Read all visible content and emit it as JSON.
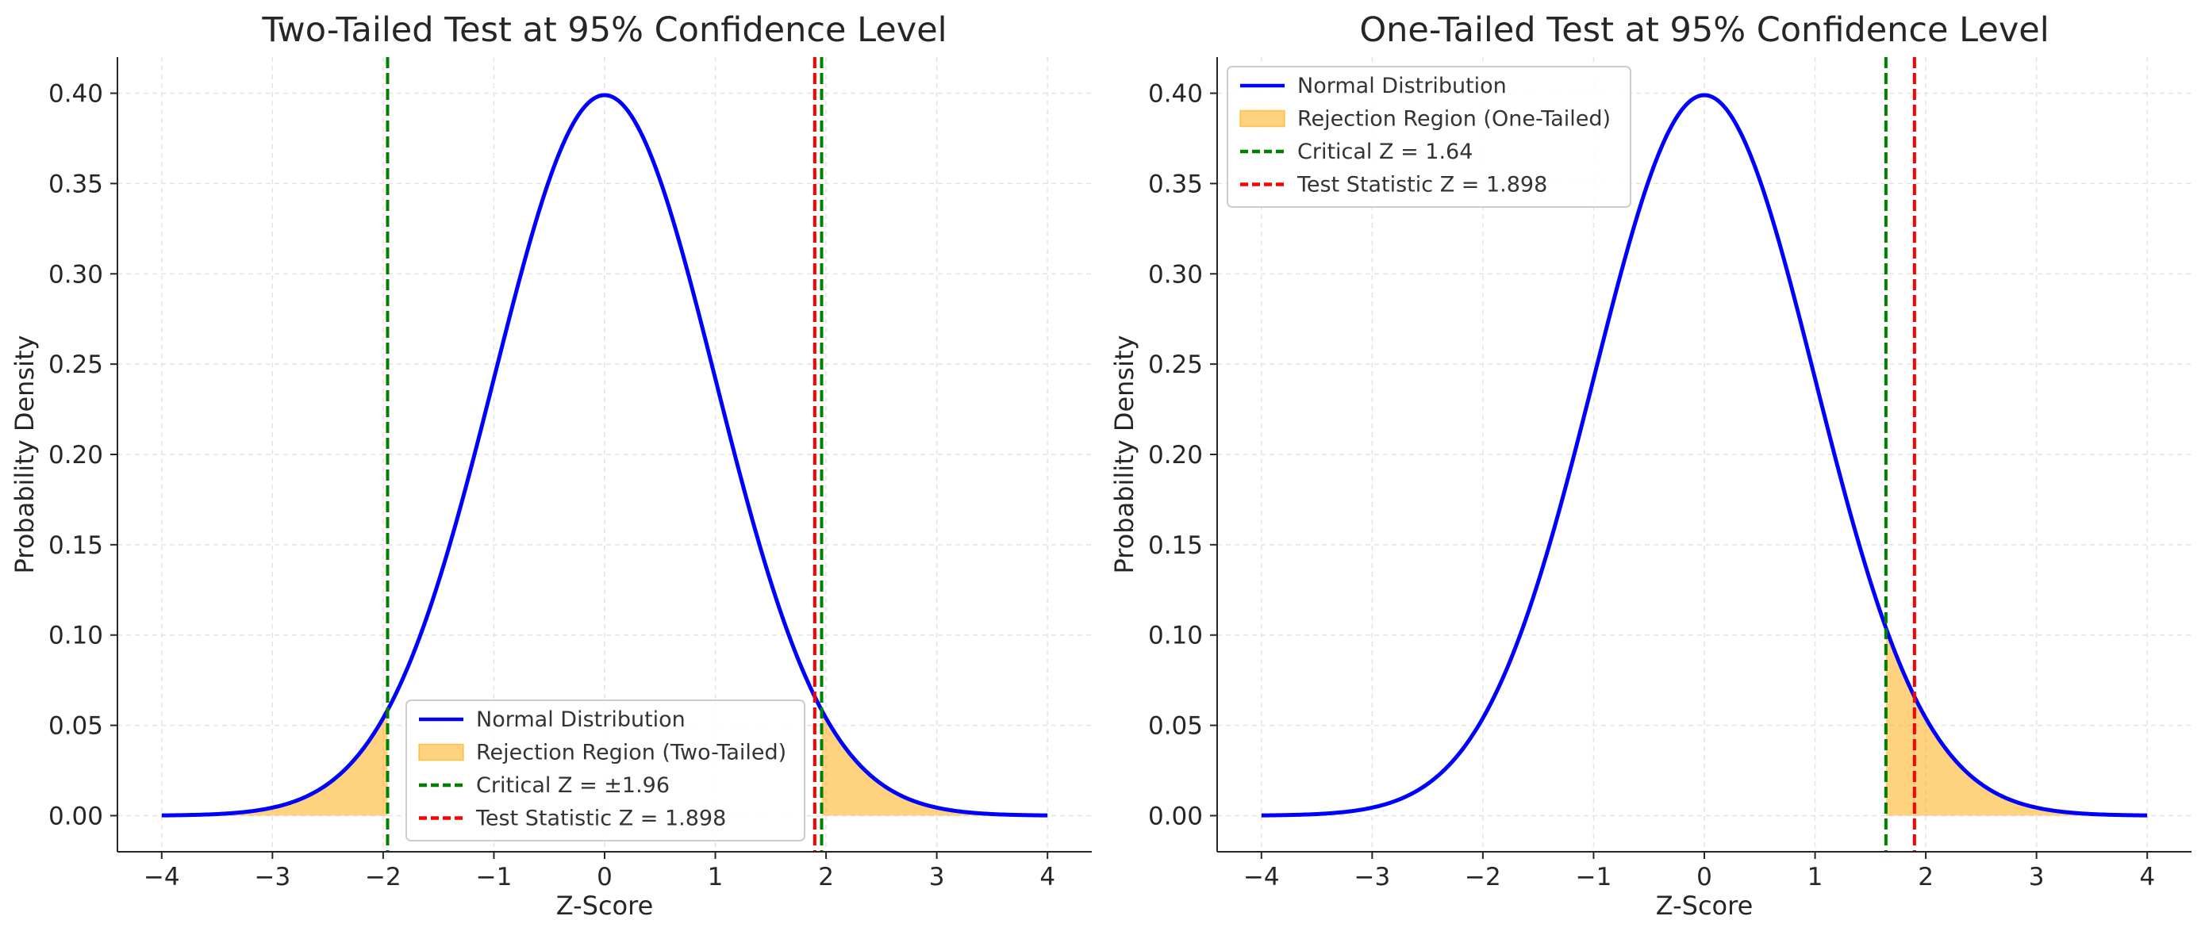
{
  "chart_data": [
    {
      "type": "line",
      "title": "Two-Tailed Test at 95% Confidence Level",
      "xlabel": "Z-Score",
      "ylabel": "Probability Density",
      "xlim": [
        -4.4,
        4.4
      ],
      "ylim": [
        -0.02,
        0.42
      ],
      "xticks": [
        -4,
        -3,
        -2,
        -1,
        0,
        1,
        2,
        3,
        4
      ],
      "xtick_labels": [
        "−4",
        "−3",
        "−2",
        "−1",
        "0",
        "1",
        "2",
        "3",
        "4"
      ],
      "yticks": [
        0,
        0.05,
        0.1,
        0.15,
        0.2,
        0.25,
        0.3,
        0.35,
        0.4
      ],
      "ytick_labels": [
        "0.00",
        "0.05",
        "0.10",
        "0.15",
        "0.20",
        "0.25",
        "0.30",
        "0.35",
        "0.40"
      ],
      "grid": true,
      "legend_position": "lower-right",
      "curve": {
        "name": "Normal Distribution",
        "color": "#0000ff",
        "x": [
          -4.0,
          -3.5,
          -3.0,
          -2.5,
          -2.0,
          -1.5,
          -1.0,
          -0.5,
          0.0,
          0.5,
          1.0,
          1.5,
          2.0,
          2.5,
          3.0,
          3.5,
          4.0
        ],
        "y": [
          0.0001,
          0.0009,
          0.0044,
          0.0175,
          0.054,
          0.1295,
          0.242,
          0.3521,
          0.3989,
          0.3521,
          0.242,
          0.1295,
          0.054,
          0.0175,
          0.0044,
          0.0009,
          0.0001
        ]
      },
      "rejection_regions": {
        "name": "Rejection Region (Two-Tailed)",
        "color": "#ffa500",
        "ranges": [
          [
            -4.0,
            -1.96
          ],
          [
            1.96,
            4.0
          ]
        ]
      },
      "vlines": [
        {
          "name": "Critical Z = ±1.96",
          "color": "#008000",
          "x": [
            -1.96,
            1.96
          ]
        },
        {
          "name": "Test Statistic Z = 1.898",
          "color": "#ff0000",
          "x": [
            1.898
          ]
        }
      ]
    },
    {
      "type": "line",
      "title": "One-Tailed Test at 95% Confidence Level",
      "xlabel": "Z-Score",
      "ylabel": "Probability Density",
      "xlim": [
        -4.4,
        4.4
      ],
      "ylim": [
        -0.02,
        0.42
      ],
      "xticks": [
        -4,
        -3,
        -2,
        -1,
        0,
        1,
        2,
        3,
        4
      ],
      "xtick_labels": [
        "−4",
        "−3",
        "−2",
        "−1",
        "0",
        "1",
        "2",
        "3",
        "4"
      ],
      "yticks": [
        0,
        0.05,
        0.1,
        0.15,
        0.2,
        0.25,
        0.3,
        0.35,
        0.4
      ],
      "ytick_labels": [
        "0.00",
        "0.05",
        "0.10",
        "0.15",
        "0.20",
        "0.25",
        "0.30",
        "0.35",
        "0.40"
      ],
      "grid": true,
      "legend_position": "upper-left",
      "curve": {
        "name": "Normal Distribution",
        "color": "#0000ff",
        "x": [
          -4.0,
          -3.5,
          -3.0,
          -2.5,
          -2.0,
          -1.5,
          -1.0,
          -0.5,
          0.0,
          0.5,
          1.0,
          1.5,
          2.0,
          2.5,
          3.0,
          3.5,
          4.0
        ],
        "y": [
          0.0001,
          0.0009,
          0.0044,
          0.0175,
          0.054,
          0.1295,
          0.242,
          0.3521,
          0.3989,
          0.3521,
          0.242,
          0.1295,
          0.054,
          0.0175,
          0.0044,
          0.0009,
          0.0001
        ]
      },
      "rejection_regions": {
        "name": "Rejection Region (One-Tailed)",
        "color": "#ffa500",
        "ranges": [
          [
            1.64,
            4.0
          ]
        ]
      },
      "vlines": [
        {
          "name": "Critical Z = 1.64",
          "color": "#008000",
          "x": [
            1.64
          ]
        },
        {
          "name": "Test Statistic Z = 1.898",
          "color": "#ff0000",
          "x": [
            1.898
          ]
        }
      ]
    }
  ]
}
